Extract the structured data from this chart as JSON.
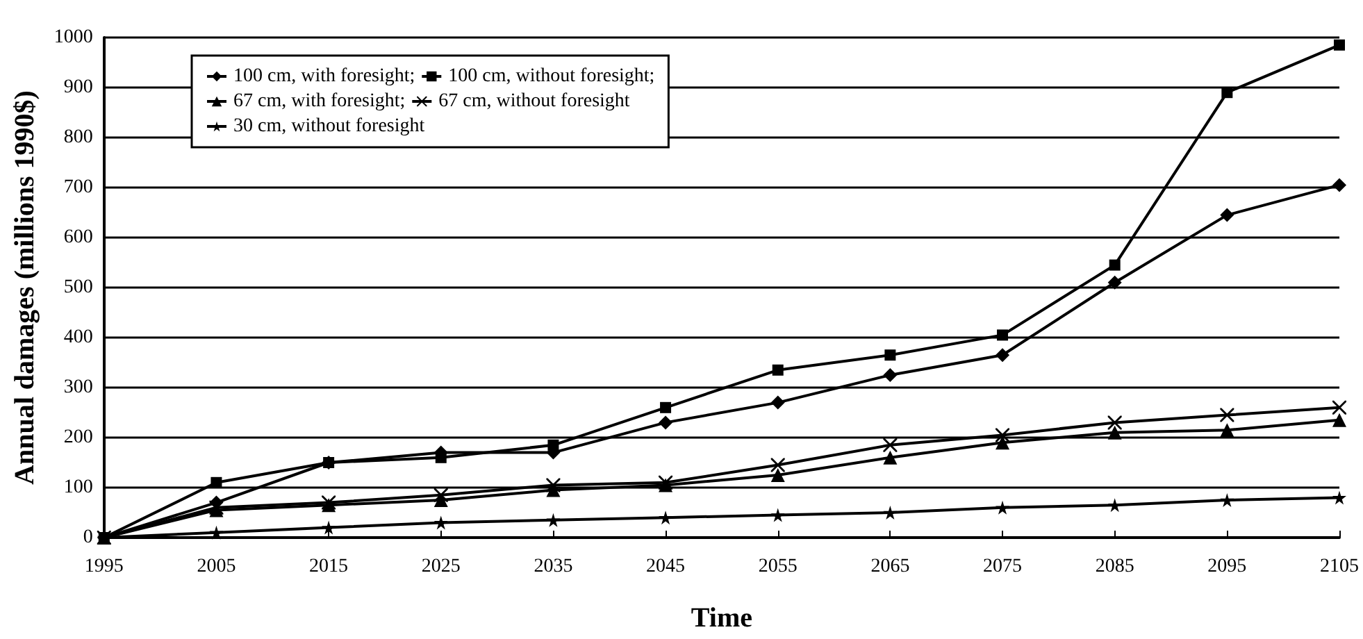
{
  "chart_data": {
    "type": "line",
    "xlabel": "Time",
    "ylabel": "Annual damages (millions 1990$)",
    "x": [
      1995,
      2005,
      2015,
      2025,
      2035,
      2045,
      2055,
      2065,
      2075,
      2085,
      2095,
      2105
    ],
    "series": [
      {
        "name": "100 cm, with foresight;",
        "color": "#000000",
        "marker": "diamond",
        "values": [
          0,
          70,
          150,
          170,
          170,
          230,
          270,
          325,
          365,
          510,
          645,
          705
        ]
      },
      {
        "name": "100 cm, without foresight;",
        "color": "#000000",
        "marker": "square",
        "values": [
          0,
          110,
          150,
          160,
          185,
          260,
          335,
          365,
          405,
          545,
          890,
          985
        ]
      },
      {
        "name": "67 cm, with foresight;",
        "color": "#000000",
        "marker": "triangle",
        "values": [
          0,
          55,
          65,
          75,
          95,
          105,
          125,
          160,
          190,
          210,
          215,
          235
        ]
      },
      {
        "name": "67 cm, without foresight",
        "color": "#000000",
        "marker": "cross",
        "values": [
          0,
          60,
          70,
          85,
          105,
          110,
          145,
          185,
          205,
          230,
          245,
          260
        ]
      },
      {
        "name": "30 cm, without foresight",
        "color": "#000000",
        "marker": "star",
        "values": [
          0,
          10,
          20,
          30,
          35,
          40,
          45,
          50,
          60,
          65,
          75,
          80
        ]
      }
    ],
    "xlim": [
      1995,
      2105
    ],
    "xticks": [
      1995,
      2005,
      2015,
      2025,
      2035,
      2045,
      2055,
      2065,
      2075,
      2085,
      2095,
      2105
    ],
    "ylim": [
      0,
      1000
    ],
    "yticks": [
      0,
      100,
      200,
      300,
      400,
      500,
      600,
      700,
      800,
      900,
      1000
    ],
    "grid": "y",
    "legend": "top left",
    "line_style": "solid"
  }
}
